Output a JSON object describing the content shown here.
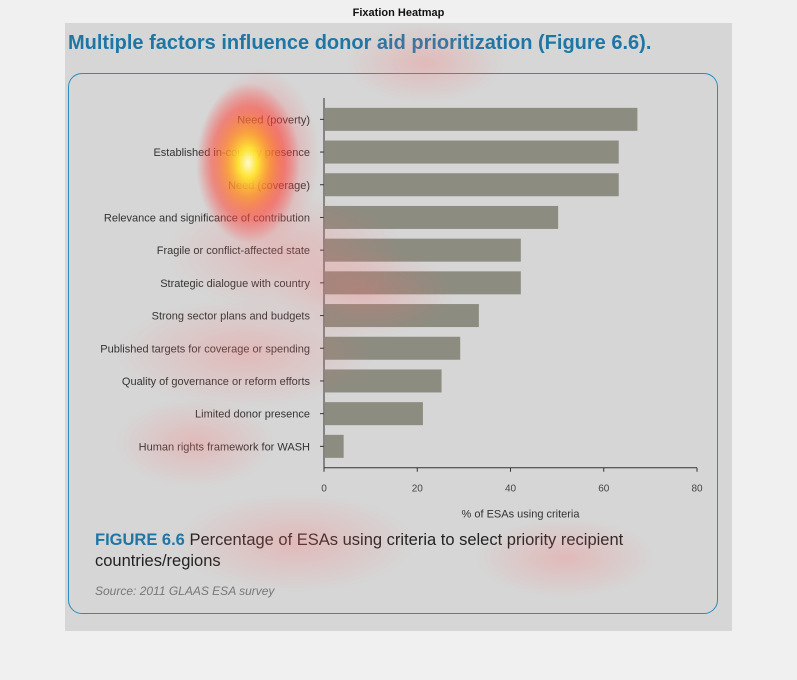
{
  "window": {
    "title": "Fixation Heatmap"
  },
  "slide": {
    "heading": "Multiple factors influence donor aid prioritization (Figure 6.6).",
    "caption_fig": "FIGURE 6.6",
    "caption_text": "Percentage of ESAs using criteria to select priority recipient countries/regions",
    "source": "Source: 2011 GLAAS ESA survey"
  },
  "colors": {
    "heading": "#1f76a5",
    "frame": "#2a8cc0",
    "bar": "#8c8c80",
    "background": "#d6d6d6"
  },
  "chart_data": {
    "type": "bar",
    "orientation": "horizontal",
    "categories": [
      "Need (poverty)",
      "Established in-country presence",
      "Need (coverage)",
      "Relevance and significance of contribution",
      "Fragile or conflict-affected state",
      "Strategic dialogue with country",
      "Strong sector plans and budgets",
      "Published targets for coverage or spending",
      "Quality of governance or reform efforts",
      "Limited donor presence",
      "Human rights framework for WASH"
    ],
    "values": [
      67,
      63,
      63,
      50,
      42,
      42,
      33,
      29,
      25,
      21,
      4
    ],
    "xlabel": "% of ESAs using criteria",
    "ylabel": "",
    "xlim": [
      0,
      80
    ],
    "xticks": [
      0,
      20,
      40,
      60,
      80
    ],
    "grid": false,
    "legend": "none"
  }
}
